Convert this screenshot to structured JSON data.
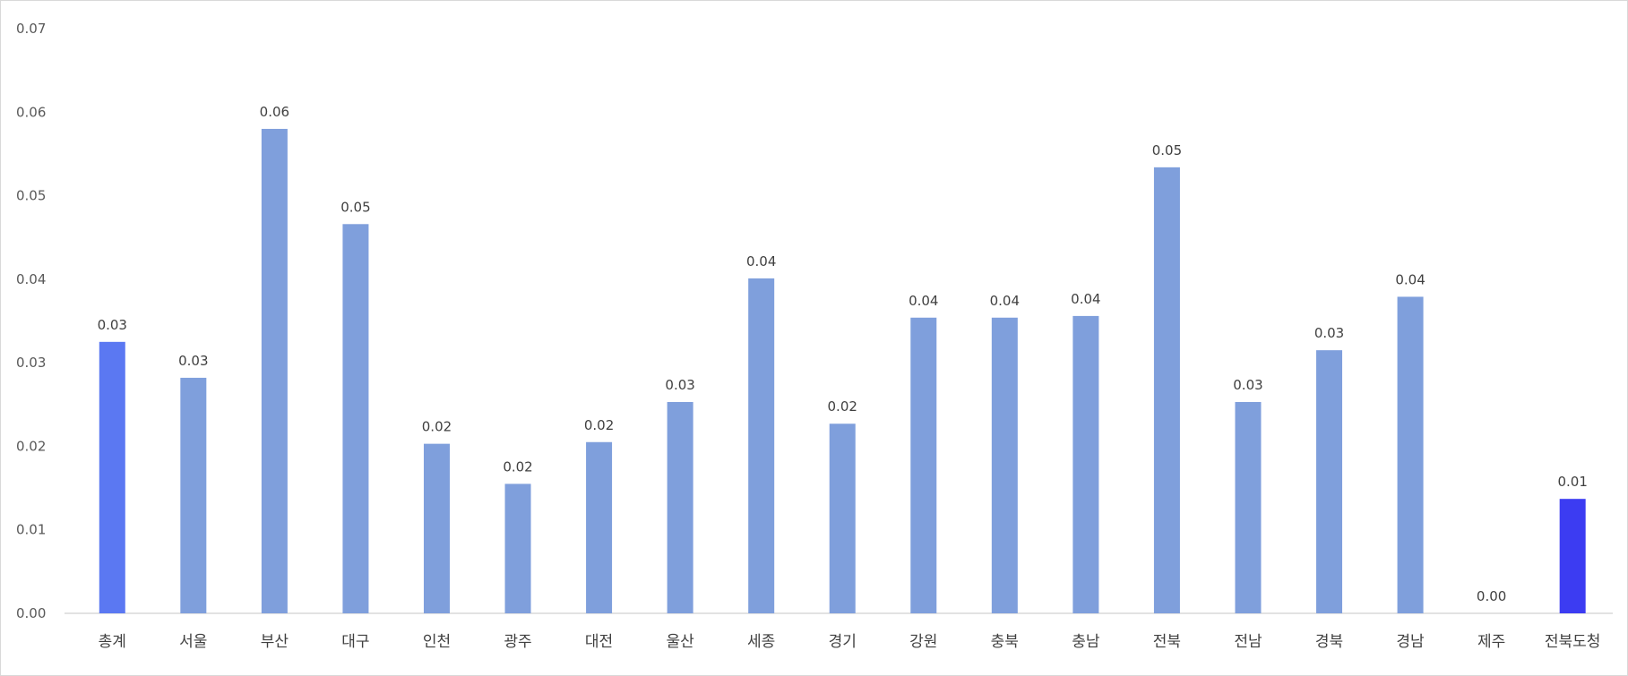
{
  "chart_data": {
    "type": "bar",
    "title": "",
    "xlabel": "",
    "ylabel": "",
    "ylim": [
      0,
      0.07
    ],
    "y_ticks": [
      "0.00",
      "0.01",
      "0.02",
      "0.03",
      "0.04",
      "0.05",
      "0.06",
      "0.07"
    ],
    "grid": false,
    "legend": "none",
    "categories": [
      "총계",
      "서울",
      "부산",
      "대구",
      "인천",
      "광주",
      "대전",
      "울산",
      "세종",
      "경기",
      "강원",
      "충북",
      "충남",
      "전북",
      "전남",
      "경북",
      "경남",
      "제주",
      "전북도청"
    ],
    "values": [
      0.0325,
      0.0282,
      0.058,
      0.0466,
      0.0203,
      0.0155,
      0.0205,
      0.0253,
      0.0401,
      0.0227,
      0.0354,
      0.0354,
      0.0356,
      0.0534,
      0.0253,
      0.0315,
      0.0379,
      0.0,
      0.0137
    ],
    "data_labels": [
      "0.03",
      "0.03",
      "0.06",
      "0.05",
      "0.02",
      "0.02",
      "0.02",
      "0.03",
      "0.04",
      "0.02",
      "0.04",
      "0.04",
      "0.04",
      "0.05",
      "0.03",
      "0.03",
      "0.04",
      "0.00",
      "0.01"
    ],
    "colors": {
      "default": "#7f9fdc",
      "highlight_total": "#5b78f2",
      "highlight_jeonbuk_office": "#3c3cf2"
    },
    "bar_colors": [
      "#5b78f2",
      "#7f9fdc",
      "#7f9fdc",
      "#7f9fdc",
      "#7f9fdc",
      "#7f9fdc",
      "#7f9fdc",
      "#7f9fdc",
      "#7f9fdc",
      "#7f9fdc",
      "#7f9fdc",
      "#7f9fdc",
      "#7f9fdc",
      "#7f9fdc",
      "#7f9fdc",
      "#7f9fdc",
      "#7f9fdc",
      "#7f9fdc",
      "#3c3cf2"
    ]
  }
}
